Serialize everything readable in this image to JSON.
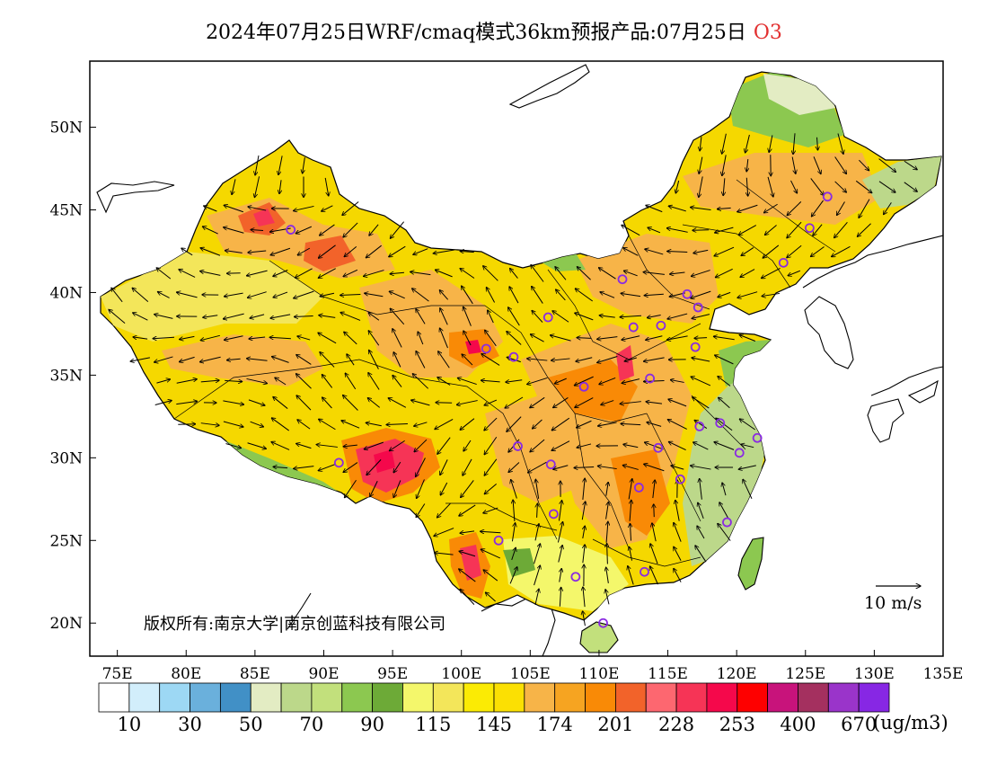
{
  "title": {
    "text": "2024年07月25日WRF/cmaq模式36km预报产品:07月25日",
    "species": "O3"
  },
  "axes": {
    "lon_labels": [
      "75E",
      "80E",
      "85E",
      "90E",
      "95E",
      "100E",
      "105E",
      "110E",
      "115E",
      "120E",
      "125E",
      "130E",
      "135E"
    ],
    "lon_range": [
      73,
      135
    ],
    "lat_labels": [
      "20N",
      "25N",
      "30N",
      "35N",
      "40N",
      "45N",
      "50N"
    ],
    "lat_range": [
      18,
      54
    ]
  },
  "colorbar": {
    "colors": [
      "#ffffff",
      "#d2eefb",
      "#9dd8f4",
      "#6ab0dc",
      "#4190c6",
      "#e3ecc3",
      "#bcd88a",
      "#c2e07c",
      "#8cc850",
      "#6daa37",
      "#f4f76b",
      "#f3e65a",
      "#fbeb04",
      "#fbe003",
      "#f7b448",
      "#f6a421",
      "#f98a06",
      "#f2632a",
      "#fd6770",
      "#f63456",
      "#f5084b",
      "#fe0000",
      "#c8137b",
      "#a4305f",
      "#9a34ca",
      "#8727e4"
    ],
    "labels": [
      "10",
      "30",
      "50",
      "70",
      "90",
      "115",
      "145",
      "174",
      "201",
      "228",
      "253",
      "400",
      "670"
    ],
    "unit": "(ug/m3)"
  },
  "wind_reference": {
    "label": "10 m/s"
  },
  "copyright": "版权所有:南京大学|南京创蓝科技有限公司",
  "colors": {
    "ocean": "#ffffff",
    "land_base": "#f5d800",
    "frame": "#000000",
    "station_marker": "#8a2be2"
  },
  "stations": [
    {
      "lon": 87.6,
      "lat": 43.8
    },
    {
      "lon": 101.8,
      "lat": 36.6
    },
    {
      "lon": 103.8,
      "lat": 36.1
    },
    {
      "lon": 106.3,
      "lat": 38.5
    },
    {
      "lon": 111.7,
      "lat": 40.8
    },
    {
      "lon": 112.5,
      "lat": 37.9
    },
    {
      "lon": 114.5,
      "lat": 38.0
    },
    {
      "lon": 116.4,
      "lat": 39.9
    },
    {
      "lon": 117.2,
      "lat": 39.1
    },
    {
      "lon": 123.4,
      "lat": 41.8
    },
    {
      "lon": 125.3,
      "lat": 43.9
    },
    {
      "lon": 126.6,
      "lat": 45.8
    },
    {
      "lon": 117.0,
      "lat": 36.7
    },
    {
      "lon": 108.9,
      "lat": 34.3
    },
    {
      "lon": 113.7,
      "lat": 34.8
    },
    {
      "lon": 117.3,
      "lat": 31.9
    },
    {
      "lon": 118.8,
      "lat": 32.1
    },
    {
      "lon": 121.5,
      "lat": 31.2
    },
    {
      "lon": 120.2,
      "lat": 30.3
    },
    {
      "lon": 114.3,
      "lat": 30.6
    },
    {
      "lon": 112.9,
      "lat": 28.2
    },
    {
      "lon": 115.9,
      "lat": 28.7
    },
    {
      "lon": 119.3,
      "lat": 26.1
    },
    {
      "lon": 113.3,
      "lat": 23.1
    },
    {
      "lon": 108.3,
      "lat": 22.8
    },
    {
      "lon": 110.3,
      "lat": 20.0
    },
    {
      "lon": 106.7,
      "lat": 26.6
    },
    {
      "lon": 102.7,
      "lat": 25.0
    },
    {
      "lon": 104.1,
      "lat": 30.7
    },
    {
      "lon": 106.5,
      "lat": 29.6
    },
    {
      "lon": 91.1,
      "lat": 29.7
    }
  ]
}
